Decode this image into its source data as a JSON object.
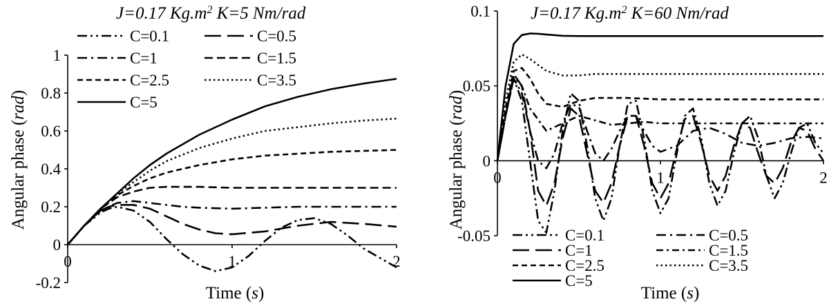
{
  "chart_data": [
    {
      "type": "line",
      "title_parts": [
        "J=0.17 ",
        "Kg.m",
        "2",
        "  K=5 ",
        "Nm/rad"
      ],
      "xlabel_text": "Time (",
      "xlabel_unit": "s",
      "xlabel_close": ")",
      "ylabel_text": "Angular phase (",
      "ylabel_unit": "rad",
      "ylabel_close": ")",
      "xlim": [
        0,
        2
      ],
      "ylim": [
        -0.2,
        1
      ],
      "xticks": [
        "0",
        "1",
        "2"
      ],
      "yticks": [
        "-0.2",
        "0",
        "0.2",
        "0.4",
        "0.6",
        "0.8",
        "1"
      ],
      "legend_placement": "top-left",
      "series": [
        {
          "name": "C=0.1",
          "dash": "dashdotdot",
          "x": [
            0,
            0.1,
            0.2,
            0.25,
            0.3,
            0.4,
            0.5,
            0.6,
            0.7,
            0.8,
            0.9,
            1.0,
            1.1,
            1.2,
            1.3,
            1.4,
            1.5,
            1.6,
            1.7,
            1.8,
            1.9,
            2.0
          ],
          "y": [
            0,
            0.1,
            0.17,
            0.19,
            0.2,
            0.18,
            0.12,
            0.03,
            -0.05,
            -0.11,
            -0.14,
            -0.12,
            -0.06,
            0.02,
            0.09,
            0.13,
            0.14,
            0.11,
            0.05,
            -0.02,
            -0.07,
            -0.12
          ]
        },
        {
          "name": "C=0.5",
          "dash": "longdash",
          "x": [
            0,
            0.1,
            0.2,
            0.25,
            0.3,
            0.4,
            0.5,
            0.6,
            0.7,
            0.8,
            0.9,
            1.0,
            1.2,
            1.4,
            1.6,
            1.8,
            2.0
          ],
          "y": [
            0,
            0.1,
            0.18,
            0.2,
            0.21,
            0.21,
            0.19,
            0.15,
            0.11,
            0.08,
            0.06,
            0.055,
            0.07,
            0.1,
            0.12,
            0.11,
            0.095
          ]
        },
        {
          "name": "C=1",
          "dash": "dashdot",
          "x": [
            0,
            0.1,
            0.2,
            0.3,
            0.4,
            0.5,
            0.6,
            0.7,
            0.8,
            1.0,
            1.2,
            1.4,
            1.6,
            1.8,
            2.0
          ],
          "y": [
            0,
            0.1,
            0.18,
            0.22,
            0.23,
            0.22,
            0.21,
            0.2,
            0.195,
            0.19,
            0.195,
            0.2,
            0.2,
            0.2,
            0.2
          ]
        },
        {
          "name": "C=1.5",
          "dash": "dash",
          "x": [
            0,
            0.1,
            0.2,
            0.3,
            0.4,
            0.5,
            0.6,
            0.8,
            1.0,
            1.2,
            1.4,
            1.6,
            1.8,
            2.0
          ],
          "y": [
            0,
            0.1,
            0.19,
            0.25,
            0.28,
            0.3,
            0.305,
            0.305,
            0.3,
            0.3,
            0.3,
            0.3,
            0.3,
            0.3
          ]
        },
        {
          "name": "C=2.5",
          "dash": "shortdash",
          "x": [
            0,
            0.1,
            0.2,
            0.3,
            0.4,
            0.5,
            0.6,
            0.8,
            1.0,
            1.2,
            1.4,
            1.6,
            1.8,
            2.0
          ],
          "y": [
            0,
            0.1,
            0.19,
            0.26,
            0.31,
            0.35,
            0.38,
            0.42,
            0.45,
            0.47,
            0.48,
            0.49,
            0.495,
            0.5
          ]
        },
        {
          "name": "C=3.5",
          "dash": "dot",
          "x": [
            0,
            0.1,
            0.2,
            0.3,
            0.4,
            0.5,
            0.6,
            0.8,
            1.0,
            1.2,
            1.4,
            1.6,
            1.8,
            2.0
          ],
          "y": [
            0,
            0.1,
            0.19,
            0.27,
            0.33,
            0.39,
            0.44,
            0.51,
            0.56,
            0.6,
            0.62,
            0.64,
            0.655,
            0.665
          ]
        },
        {
          "name": "C=5",
          "dash": "solid",
          "x": [
            0,
            0.1,
            0.2,
            0.3,
            0.4,
            0.5,
            0.6,
            0.8,
            1.0,
            1.2,
            1.4,
            1.6,
            1.8,
            2.0
          ],
          "y": [
            0,
            0.1,
            0.19,
            0.27,
            0.35,
            0.42,
            0.48,
            0.58,
            0.66,
            0.73,
            0.78,
            0.82,
            0.85,
            0.875
          ]
        }
      ]
    },
    {
      "type": "line",
      "title_parts": [
        "J=0.17 ",
        "Kg.m",
        "2",
        "  K=60 ",
        "Nm/rad"
      ],
      "xlabel_text": "Time (",
      "xlabel_unit": "s",
      "xlabel_close": ")",
      "ylabel_text": "Angular phase (",
      "ylabel_unit": "rad",
      "ylabel_close": ")",
      "xlim": [
        0,
        2
      ],
      "ylim": [
        -0.05,
        0.1
      ],
      "xticks": [
        "0",
        "1",
        "2"
      ],
      "yticks": [
        "-0.05",
        "0",
        "0.05",
        "0.1"
      ],
      "legend_placement": "bottom",
      "series": [
        {
          "name": "C=0.1",
          "dash": "dashdotdot",
          "x": [
            0,
            0.05,
            0.1,
            0.15,
            0.2,
            0.25,
            0.3,
            0.35,
            0.4,
            0.45,
            0.5,
            0.55,
            0.6,
            0.65,
            0.7,
            0.75,
            0.8,
            0.85,
            0.9,
            0.95,
            1.0,
            1.05,
            1.1,
            1.15,
            1.2,
            1.25,
            1.3,
            1.35,
            1.4,
            1.45,
            1.5,
            1.55,
            1.6,
            1.65,
            1.7,
            1.75,
            1.8,
            1.85,
            1.9,
            1.95,
            2.0
          ],
          "y": [
            0,
            0.03,
            0.055,
            0.04,
            0.0,
            -0.04,
            -0.048,
            -0.02,
            0.02,
            0.045,
            0.04,
            0.01,
            -0.025,
            -0.04,
            -0.025,
            0.01,
            0.038,
            0.04,
            0.015,
            -0.02,
            -0.035,
            -0.025,
            0.005,
            0.03,
            0.035,
            0.015,
            -0.015,
            -0.03,
            -0.02,
            0.005,
            0.025,
            0.03,
            0.015,
            -0.01,
            -0.025,
            -0.015,
            0.005,
            0.022,
            0.025,
            0.012,
            0.005
          ]
        },
        {
          "name": "C=0.5",
          "dash": "dashdot",
          "x": [
            0,
            0.05,
            0.1,
            0.15,
            0.2,
            0.25,
            0.3,
            0.35,
            0.4,
            0.45,
            0.5,
            0.55,
            0.6,
            0.65,
            0.7,
            0.75,
            0.8,
            0.85,
            0.9,
            0.95,
            1.0,
            1.1,
            1.2,
            1.3,
            1.4,
            1.5,
            1.6,
            1.7,
            1.8,
            1.9,
            2.0
          ],
          "y": [
            0,
            0.03,
            0.055,
            0.045,
            0.02,
            0.0,
            -0.005,
            0.005,
            0.025,
            0.038,
            0.036,
            0.02,
            0.005,
            0.0,
            0.008,
            0.02,
            0.03,
            0.03,
            0.02,
            0.01,
            0.006,
            0.01,
            0.02,
            0.022,
            0.018,
            0.012,
            0.01,
            0.012,
            0.015,
            0.016,
            0.015
          ]
        },
        {
          "name": "C=1",
          "dash": "longdash",
          "x": [
            0,
            0.05,
            0.1,
            0.15,
            0.2,
            0.25,
            0.3,
            0.35,
            0.4,
            0.45,
            0.5,
            0.55,
            0.6,
            0.65,
            0.7,
            0.75,
            0.8,
            0.85,
            0.9,
            0.95,
            1.0,
            1.05,
            1.1,
            1.15,
            1.2,
            1.25,
            1.3,
            1.35,
            1.4,
            1.45,
            1.5,
            1.55,
            1.6,
            1.65,
            1.7,
            1.75,
            1.8,
            1.85,
            1.9,
            1.95,
            2.0
          ],
          "y": [
            0,
            0.03,
            0.058,
            0.05,
            0.02,
            -0.02,
            -0.03,
            -0.015,
            0.015,
            0.035,
            0.03,
            0.005,
            -0.02,
            -0.028,
            -0.015,
            0.01,
            0.03,
            0.03,
            0.01,
            -0.015,
            -0.025,
            -0.015,
            0.008,
            0.028,
            0.03,
            0.012,
            -0.01,
            -0.02,
            -0.01,
            0.01,
            0.025,
            0.022,
            0.005,
            -0.01,
            -0.015,
            -0.005,
            0.012,
            0.022,
            0.02,
            0.008,
            0.0
          ]
        },
        {
          "name": "C=1.5",
          "dash": "dashdot2",
          "x": [
            0,
            0.05,
            0.1,
            0.15,
            0.2,
            0.3,
            0.4,
            0.5,
            0.6,
            0.7,
            0.8,
            0.9,
            1.0,
            1.2,
            1.4,
            1.6,
            1.8,
            2.0
          ],
          "y": [
            0,
            0.03,
            0.056,
            0.05,
            0.035,
            0.02,
            0.025,
            0.03,
            0.027,
            0.024,
            0.025,
            0.026,
            0.025,
            0.025,
            0.025,
            0.025,
            0.025,
            0.025
          ]
        },
        {
          "name": "C=2.5",
          "dash": "shortdash",
          "x": [
            0,
            0.05,
            0.1,
            0.15,
            0.2,
            0.25,
            0.3,
            0.4,
            0.5,
            0.6,
            0.8,
            1.0,
            1.2,
            1.4,
            1.6,
            1.8,
            2.0
          ],
          "y": [
            0,
            0.035,
            0.06,
            0.062,
            0.055,
            0.045,
            0.038,
            0.036,
            0.04,
            0.042,
            0.042,
            0.041,
            0.041,
            0.041,
            0.041,
            0.041,
            0.041
          ]
        },
        {
          "name": "C=3.5",
          "dash": "dot",
          "x": [
            0,
            0.05,
            0.1,
            0.15,
            0.2,
            0.3,
            0.4,
            0.5,
            0.6,
            0.8,
            1.0,
            1.2,
            1.4,
            1.6,
            1.8,
            2.0
          ],
          "y": [
            0,
            0.04,
            0.066,
            0.071,
            0.068,
            0.06,
            0.057,
            0.057,
            0.058,
            0.058,
            0.058,
            0.058,
            0.058,
            0.058,
            0.058,
            0.058
          ]
        },
        {
          "name": "C=5",
          "dash": "solid",
          "x": [
            0,
            0.05,
            0.1,
            0.15,
            0.2,
            0.25,
            0.3,
            0.4,
            0.5,
            0.6,
            0.8,
            1.0,
            1.2,
            1.4,
            1.6,
            1.8,
            2.0
          ],
          "y": [
            0,
            0.05,
            0.078,
            0.084,
            0.085,
            0.0848,
            0.0843,
            0.0835,
            0.0833,
            0.0833,
            0.0833,
            0.0833,
            0.0833,
            0.0833,
            0.0833,
            0.0833,
            0.0833
          ]
        }
      ]
    }
  ]
}
